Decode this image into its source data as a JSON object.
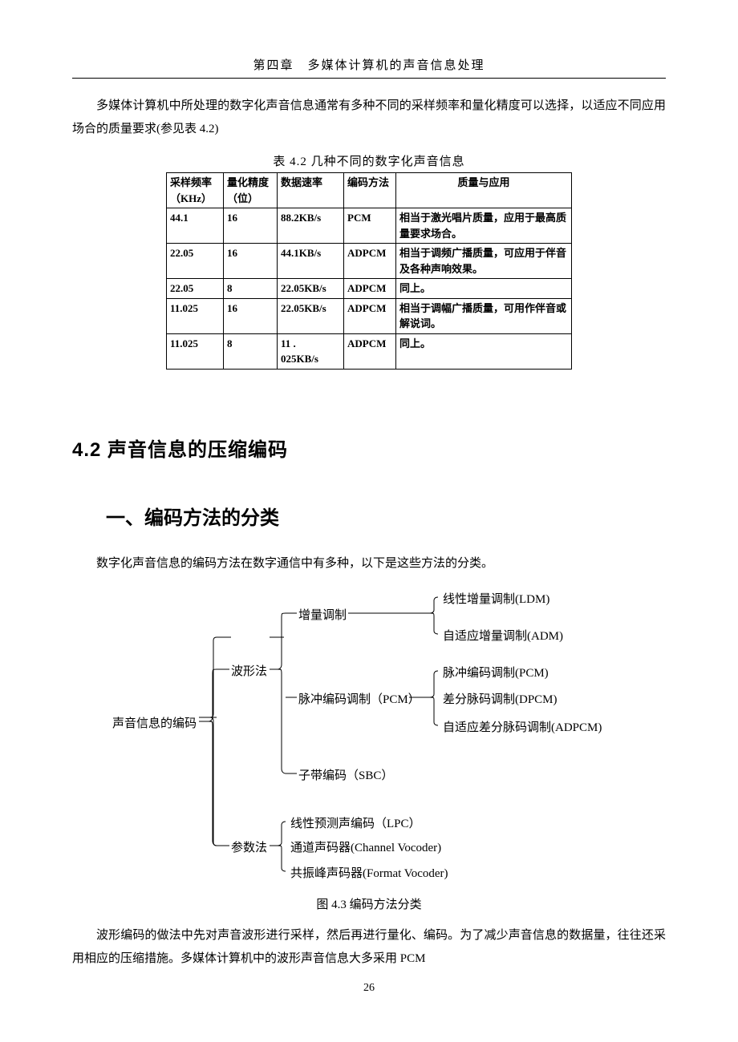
{
  "header": "第四章　多媒体计算机的声音信息处理",
  "intro": "多媒体计算机中所处理的数字化声音信息通常有多种不同的采样频率和量化精度可以选择，以适应不同应用场合的质量要求(参见表 4.2)",
  "table_caption": "表 4.2  几种不同的数字化声音信息",
  "table": {
    "headers": [
      "采样频率（KHz）",
      "量化精度（位）",
      "数据速率",
      "编码方法",
      "质量与应用"
    ],
    "rows": [
      [
        "44.1",
        "16",
        "88.2KB/s",
        "PCM",
        "相当于激光唱片质量，应用于最高质量要求场合。"
      ],
      [
        "22.05",
        "16",
        "44.1KB/s",
        "ADPCM",
        "相当于调频广播质量，可应用于伴音及各种声响效果。"
      ],
      [
        "22.05",
        "8",
        "22.05KB/s",
        "ADPCM",
        "同上。"
      ],
      [
        "11.025",
        "16",
        "22.05KB/s",
        "ADPCM",
        "相当于调幅广播质量，可用作伴音或解说词。"
      ],
      [
        "11.025",
        "8",
        "11 .\n025KB/s",
        "ADPCM",
        "同上。"
      ]
    ]
  },
  "section_title": "4.2 声音信息的压缩编码",
  "subsection_title": "一、编码方法的分类",
  "subsection_text": "数字化声音信息的编码方法在数字通信中有多种，以下是这些方法的分类。",
  "diagram": {
    "root": "声音信息的编码",
    "level1": [
      "波形法",
      "参数法"
    ],
    "waveform_children": [
      "增量调制",
      "脉冲编码调制（PCM）",
      "子带编码（SBC）"
    ],
    "delta_children": [
      "线性增量调制(LDM)",
      "自适应增量调制(ADM)"
    ],
    "pcm_children": [
      "脉冲编码调制(PCM)",
      "差分脉码调制(DPCM)",
      "自适应差分脉码调制(ADPCM)"
    ],
    "param_children": [
      "线性预测声编码（LPC）",
      "通道声码器(Channel Vocoder)",
      "共振峰声码器(Format Vocoder)"
    ]
  },
  "fig_caption": "图 4.3 编码方法分类",
  "trailing_para": "波形编码的做法中先对声音波形进行采样，然后再进行量化、编码。为了减少声音信息的数据量，往往还采用相应的压缩措施。多媒体计算机中的波形声音信息大多采用 PCM",
  "page_number": "26"
}
